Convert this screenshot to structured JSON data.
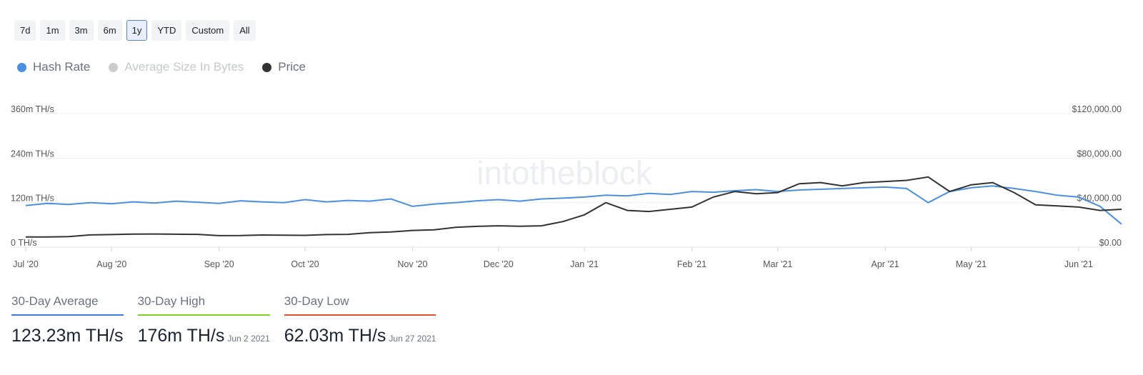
{
  "buttons": [
    "7d",
    "1m",
    "3m",
    "6m",
    "1y",
    "YTD",
    "Custom",
    "All"
  ],
  "selected_button": 4,
  "watermark": "intotheblock",
  "chart_data": {
    "type": "line",
    "categories": [
      "Jul '20",
      null,
      null,
      null,
      "Aug '20",
      null,
      null,
      null,
      null,
      "Sep '20",
      null,
      null,
      null,
      "Oct '20",
      null,
      null,
      null,
      null,
      "Nov '20",
      null,
      null,
      null,
      "Dec '20",
      null,
      null,
      null,
      "Jan '21",
      null,
      null,
      null,
      null,
      "Feb '21",
      null,
      null,
      null,
      "Mar '21",
      null,
      null,
      null,
      null,
      "Apr '21",
      null,
      null,
      null,
      "May '21",
      null,
      null,
      null,
      null,
      "Jun '21",
      null,
      null
    ],
    "series": [
      {
        "name": "Hash Rate",
        "color": "#4a90e2",
        "axis": "y",
        "values": [
          112,
          118,
          115,
          120,
          117,
          122,
          119,
          124,
          121,
          118,
          125,
          122,
          120,
          128,
          122,
          126,
          124,
          130,
          110,
          116,
          120,
          125,
          128,
          124,
          130,
          132,
          135,
          140,
          138,
          145,
          142,
          150,
          148,
          152,
          155,
          150,
          154,
          156,
          158,
          160,
          162,
          158,
          120,
          150,
          160,
          165,
          158,
          150,
          140,
          135,
          110,
          62
        ]
      },
      {
        "name": "Average Size In Bytes",
        "color": "#cccccc",
        "hidden": true
      },
      {
        "name": "Price",
        "color": "#333333",
        "axis": "y2",
        "values": [
          9100,
          9200,
          9500,
          11000,
          11300,
          11700,
          11800,
          11600,
          11500,
          10300,
          10400,
          10900,
          10700,
          10600,
          11300,
          11500,
          13000,
          13700,
          15000,
          15500,
          17800,
          18700,
          19200,
          18800,
          19200,
          23000,
          29000,
          40000,
          33000,
          32000,
          34000,
          36000,
          45000,
          50000,
          48000,
          49000,
          57000,
          58000,
          55000,
          58000,
          59000,
          60000,
          63000,
          50000,
          56000,
          58000,
          49000,
          38000,
          37000,
          36000,
          33000,
          34000
        ]
      }
    ],
    "ylim": [
      0,
      360
    ],
    "yticks": [
      {
        "value": 0,
        "label": "0 TH/s"
      },
      {
        "value": 120,
        "label": "120m TH/s"
      },
      {
        "value": 240,
        "label": "240m TH/s"
      },
      {
        "value": 360,
        "label": "360m TH/s"
      }
    ],
    "y2lim": [
      0,
      120000
    ],
    "y2ticks": [
      {
        "value": 0,
        "label": "$0.00"
      },
      {
        "value": 40000,
        "label": "$40,000.00"
      },
      {
        "value": 80000,
        "label": "$80,000.00"
      },
      {
        "value": 120000,
        "label": "$120,000.00"
      }
    ],
    "grid": true
  },
  "stats": [
    {
      "label": "30-Day Average",
      "value": "123.23m TH/s",
      "color": "#3b7ddd"
    },
    {
      "label": "30-Day High",
      "value": "176m TH/s",
      "date": "Jun 2 2021",
      "color": "#7ed321"
    },
    {
      "label": "30-Day Low",
      "value": "62.03m TH/s",
      "date": "Jun 27 2021",
      "color": "#e0502a"
    }
  ]
}
